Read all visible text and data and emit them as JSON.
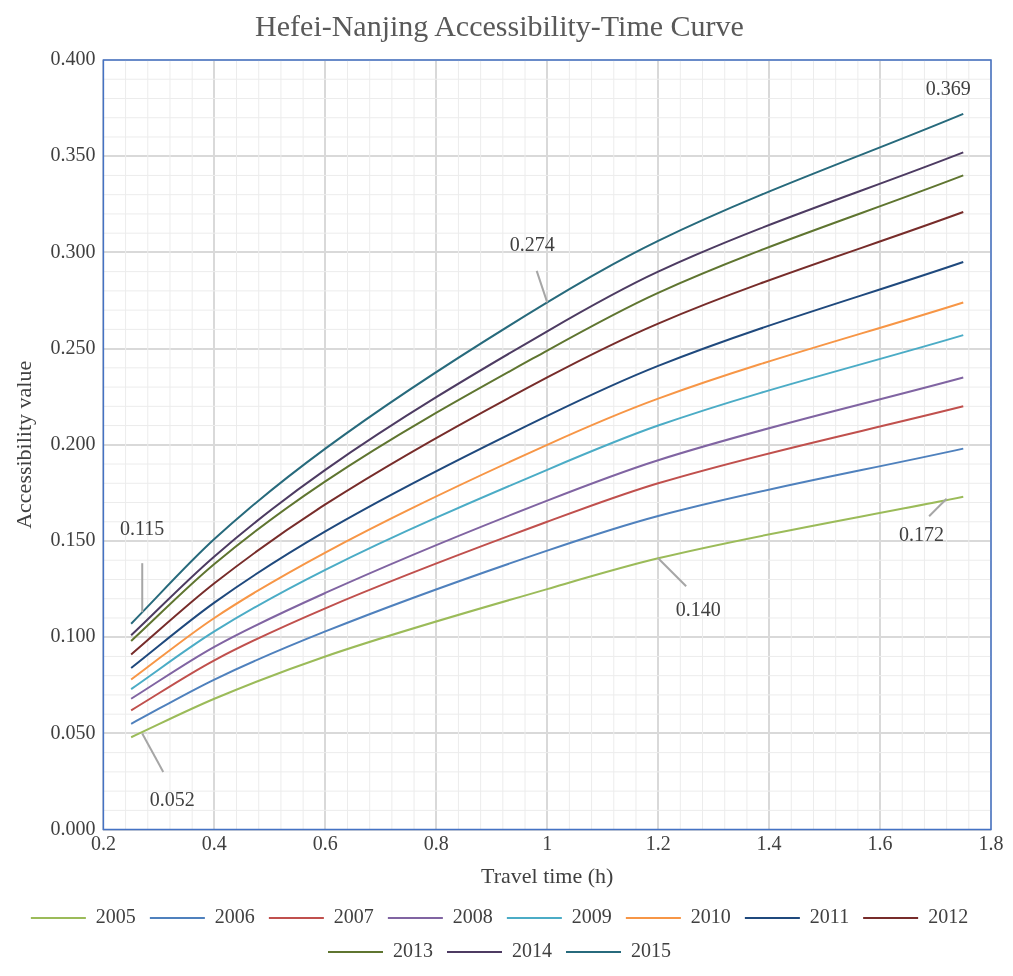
{
  "chart_data": {
    "type": "line",
    "title": "Hefei-Nanjing Accessibility-Time Curve",
    "xlabel": "Travel time (h)",
    "ylabel": "Accessibility value",
    "x": [
      0.25,
      0.4,
      0.6,
      1.0,
      1.2,
      1.75
    ],
    "xlim": [
      0.2,
      1.8
    ],
    "xticks": [
      0.2,
      0.4,
      0.6,
      0.8,
      1,
      1.2,
      1.4,
      1.6,
      1.8
    ],
    "ylim": [
      0,
      0.4
    ],
    "yticks": [
      {
        "value": 0,
        "label": "0.000"
      },
      {
        "value": 0.05,
        "label": "0.050"
      },
      {
        "value": 0.1,
        "label": "0.100"
      },
      {
        "value": 0.15,
        "label": "0.150"
      },
      {
        "value": 0.2,
        "label": "0.200"
      },
      {
        "value": 0.25,
        "label": "0.250"
      },
      {
        "value": 0.3,
        "label": "0.300"
      },
      {
        "value": 0.35,
        "label": "0.350"
      },
      {
        "value": 0.4,
        "label": "0.400"
      }
    ],
    "grid": true,
    "legend": "bottom",
    "marker": "none",
    "line_style": "solid",
    "series": [
      {
        "name": "2005",
        "color": "#9bbb59",
        "values": [
          0.048,
          0.068,
          0.09,
          0.125,
          0.141,
          0.173
        ]
      },
      {
        "name": "2006",
        "color": "#4f81bd",
        "values": [
          0.055,
          0.078,
          0.103,
          0.145,
          0.163,
          0.198
        ]
      },
      {
        "name": "2007",
        "color": "#c0504d",
        "values": [
          0.062,
          0.088,
          0.115,
          0.16,
          0.18,
          0.22
        ]
      },
      {
        "name": "2008",
        "color": "#8064a2",
        "values": [
          0.068,
          0.095,
          0.123,
          0.171,
          0.192,
          0.235
        ]
      },
      {
        "name": "2009",
        "color": "#4bacc6",
        "values": [
          0.073,
          0.103,
          0.135,
          0.187,
          0.21,
          0.257
        ]
      },
      {
        "name": "2010",
        "color": "#f79646",
        "values": [
          0.078,
          0.11,
          0.144,
          0.2,
          0.224,
          0.274
        ]
      },
      {
        "name": "2011",
        "color": "#1f497d",
        "values": [
          0.084,
          0.118,
          0.155,
          0.215,
          0.241,
          0.295
        ]
      },
      {
        "name": "2012",
        "color": "#772c2a",
        "values": [
          0.091,
          0.128,
          0.169,
          0.235,
          0.263,
          0.321
        ]
      },
      {
        "name": "2013",
        "color": "#5f7530",
        "values": [
          0.098,
          0.138,
          0.181,
          0.249,
          0.279,
          0.34
        ]
      },
      {
        "name": "2014",
        "color": "#4d3b62",
        "values": [
          0.101,
          0.142,
          0.187,
          0.259,
          0.29,
          0.352
        ]
      },
      {
        "name": "2015",
        "color": "#276a7c",
        "values": [
          0.107,
          0.151,
          0.198,
          0.274,
          0.306,
          0.372
        ]
      }
    ],
    "annotations": [
      {
        "text": "0.115",
        "x": 0.27,
        "y": 0.113
      },
      {
        "text": "0.052",
        "x": 0.27,
        "y": 0.05
      },
      {
        "text": "0.274",
        "x": 1.0,
        "y": 0.274
      },
      {
        "text": "0.140",
        "x": 1.2,
        "y": 0.141
      },
      {
        "text": "0.172",
        "x": 1.72,
        "y": 0.172
      },
      {
        "text": "0.369",
        "x": 1.75,
        "y": 0.372
      }
    ]
  }
}
